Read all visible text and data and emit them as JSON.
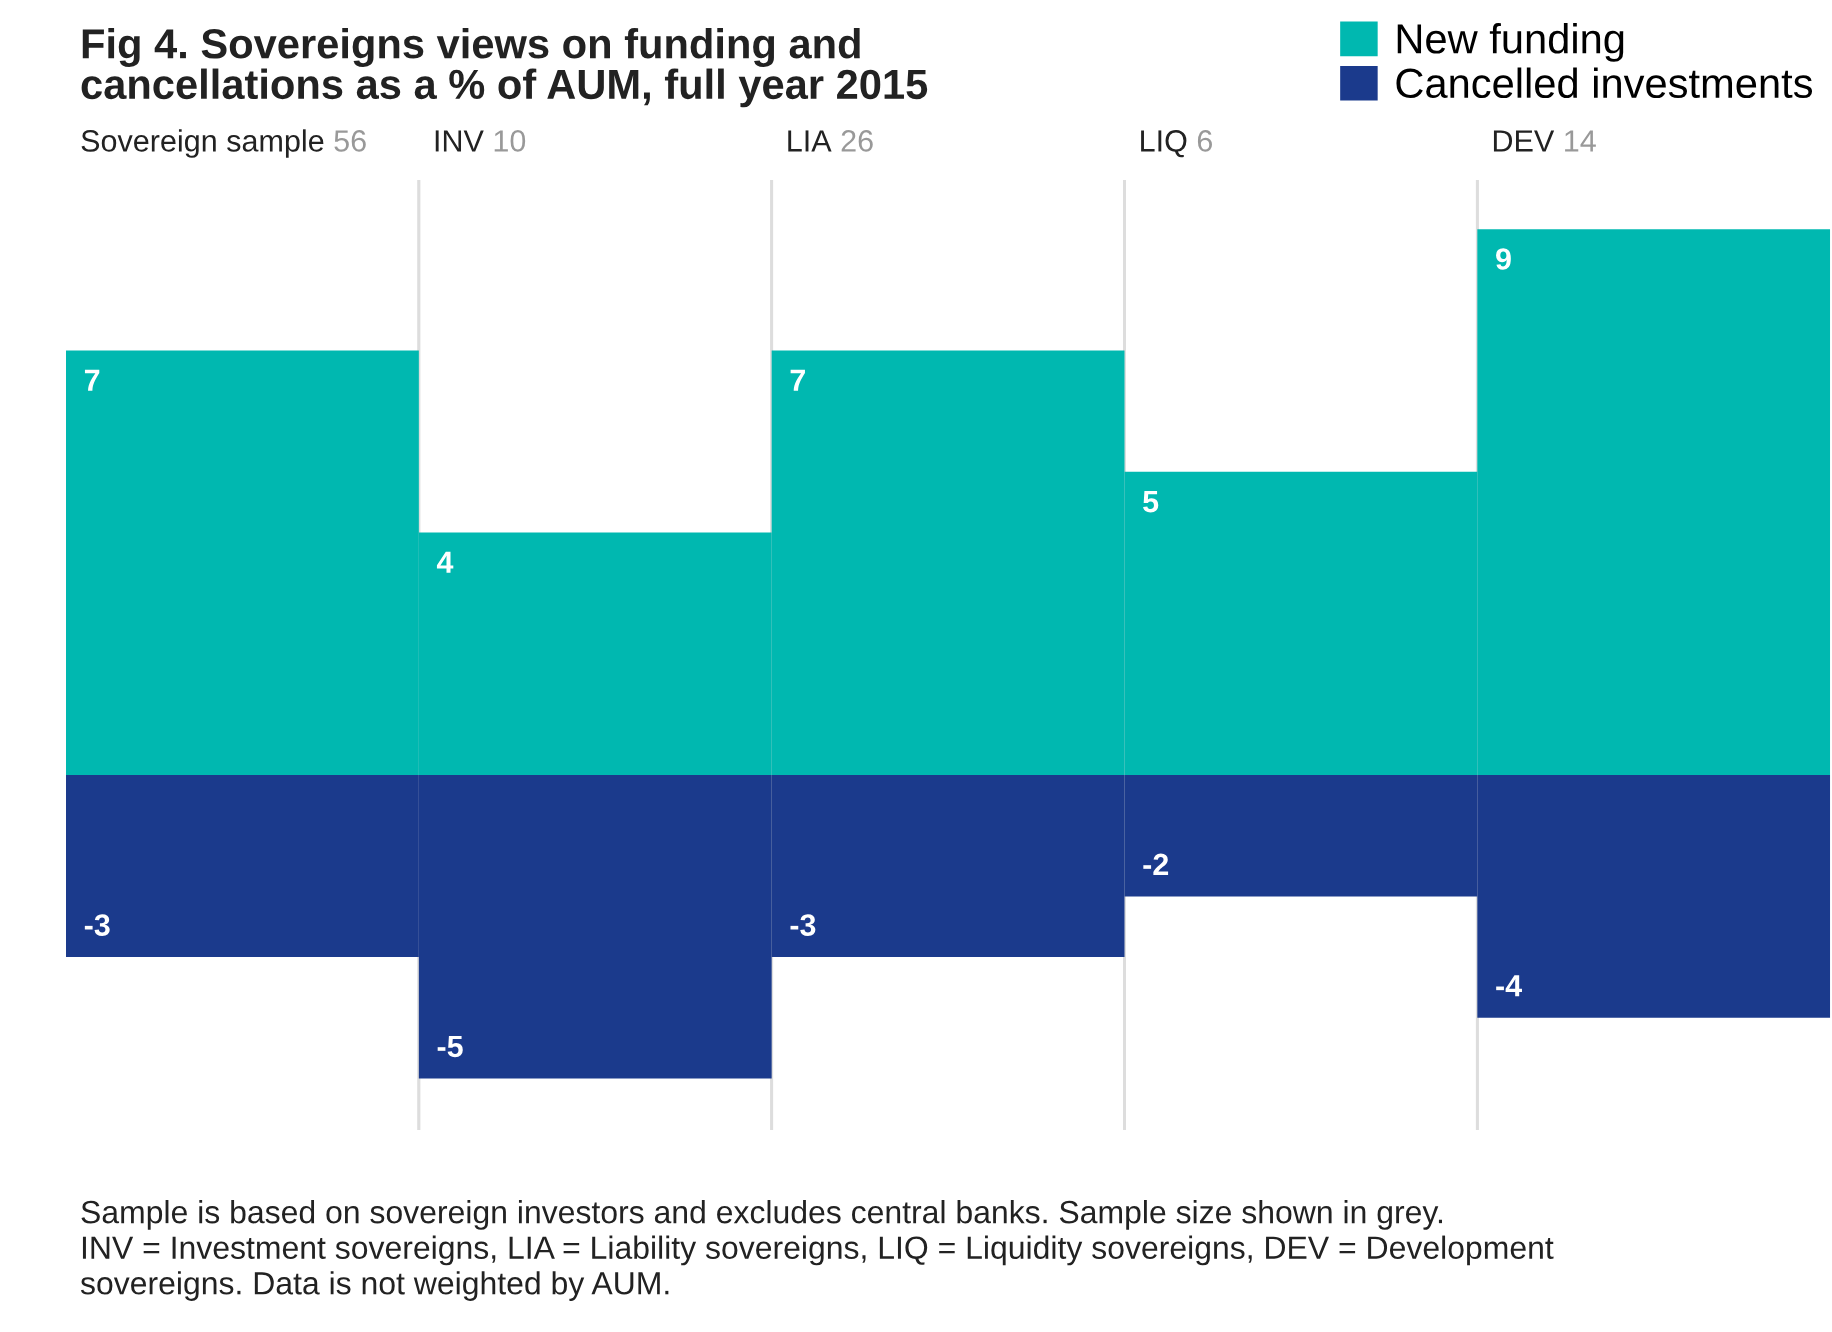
{
  "chart_data": {
    "type": "bar",
    "title": "Fig 4. Sovereigns views on funding and\ncancellations as a % of AUM, full year 2015",
    "categories": [
      "Sovereign sample 56",
      "INV 10",
      "LIA 26",
      "LIQ 6",
      "DEV 14"
    ],
    "series": [
      {
        "name": "New funding",
        "color": "#00b8b0",
        "values": [
          7,
          4,
          7,
          5,
          9
        ]
      },
      {
        "name": "Cancelled investments",
        "color": "#1b3a8c",
        "values": [
          -3,
          -5,
          -3,
          -2,
          -4
        ]
      }
    ],
    "stacked": true,
    "data_labels": true,
    "legend": "top right",
    "annotations": [
      "Sample is based on sovereign investors and excludes central banks. Sample size shown in grey.\nINV = Investment sovereigns, LIA = Liability sovereigns, LIQ = Liquidity sovereigns, DEV = Development\nsovereigns. Data is not weighted by AUM."
    ]
  }
}
